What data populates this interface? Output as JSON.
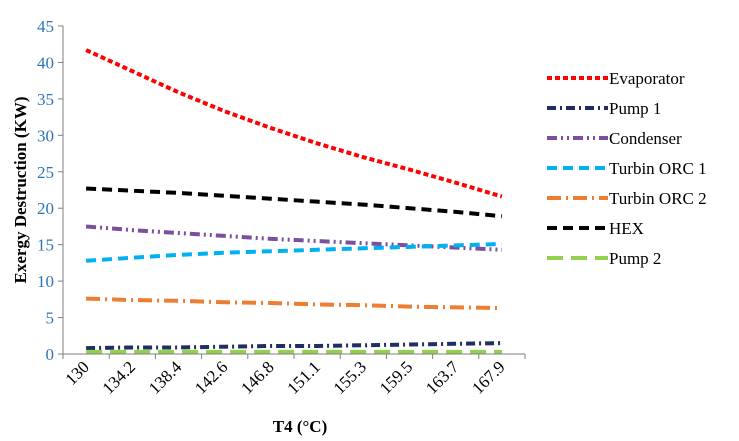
{
  "chart_data": {
    "type": "line",
    "xlabel": "T4 (°C)",
    "ylabel": "Exergy Destruction (KW)",
    "ylim": [
      0,
      45
    ],
    "yticks": [
      0,
      5,
      10,
      15,
      20,
      25,
      30,
      35,
      40,
      45
    ],
    "categories": [
      "130",
      "134.2",
      "138.4",
      "142.6",
      "146.8",
      "151.1",
      "155.3",
      "159.5",
      "163.7",
      "167.9"
    ],
    "legend_position": "right",
    "grid": false,
    "series": [
      {
        "name": "Evaporator",
        "color": "#ff0000",
        "dash": "short-dash",
        "values": [
          41.7,
          38.8,
          35.9,
          33.3,
          31.0,
          28.9,
          27.0,
          25.3,
          23.5,
          21.6
        ]
      },
      {
        "name": "Pump 1",
        "color": "#1f2f5f",
        "dash": "dash-dot",
        "values": [
          0.8,
          0.9,
          0.9,
          1.0,
          1.1,
          1.1,
          1.2,
          1.3,
          1.4,
          1.5
        ]
      },
      {
        "name": "Condenser",
        "color": "#7b4f9d",
        "dash": "dash-dot-dot",
        "values": [
          17.5,
          17.0,
          16.6,
          16.2,
          15.8,
          15.5,
          15.2,
          14.9,
          14.6,
          14.3
        ]
      },
      {
        "name": "Turbin ORC 1",
        "color": "#00b0f0",
        "dash": "dash",
        "values": [
          12.8,
          13.2,
          13.6,
          13.9,
          14.1,
          14.3,
          14.5,
          14.7,
          14.9,
          15.1
        ]
      },
      {
        "name": "Turbin ORC 2",
        "color": "#ed7d31",
        "dash": "long-dash-dot",
        "values": [
          7.6,
          7.4,
          7.3,
          7.1,
          7.0,
          6.8,
          6.7,
          6.5,
          6.4,
          6.3
        ]
      },
      {
        "name": "HEX",
        "color": "#000000",
        "dash": "dash",
        "values": [
          22.7,
          22.4,
          22.1,
          21.7,
          21.3,
          20.9,
          20.5,
          20.0,
          19.5,
          18.9
        ]
      },
      {
        "name": "Pump 2",
        "color": "#92d050",
        "dash": "long-dash",
        "values": [
          0.3,
          0.3,
          0.3,
          0.3,
          0.3,
          0.3,
          0.3,
          0.3,
          0.3,
          0.3
        ]
      }
    ]
  }
}
